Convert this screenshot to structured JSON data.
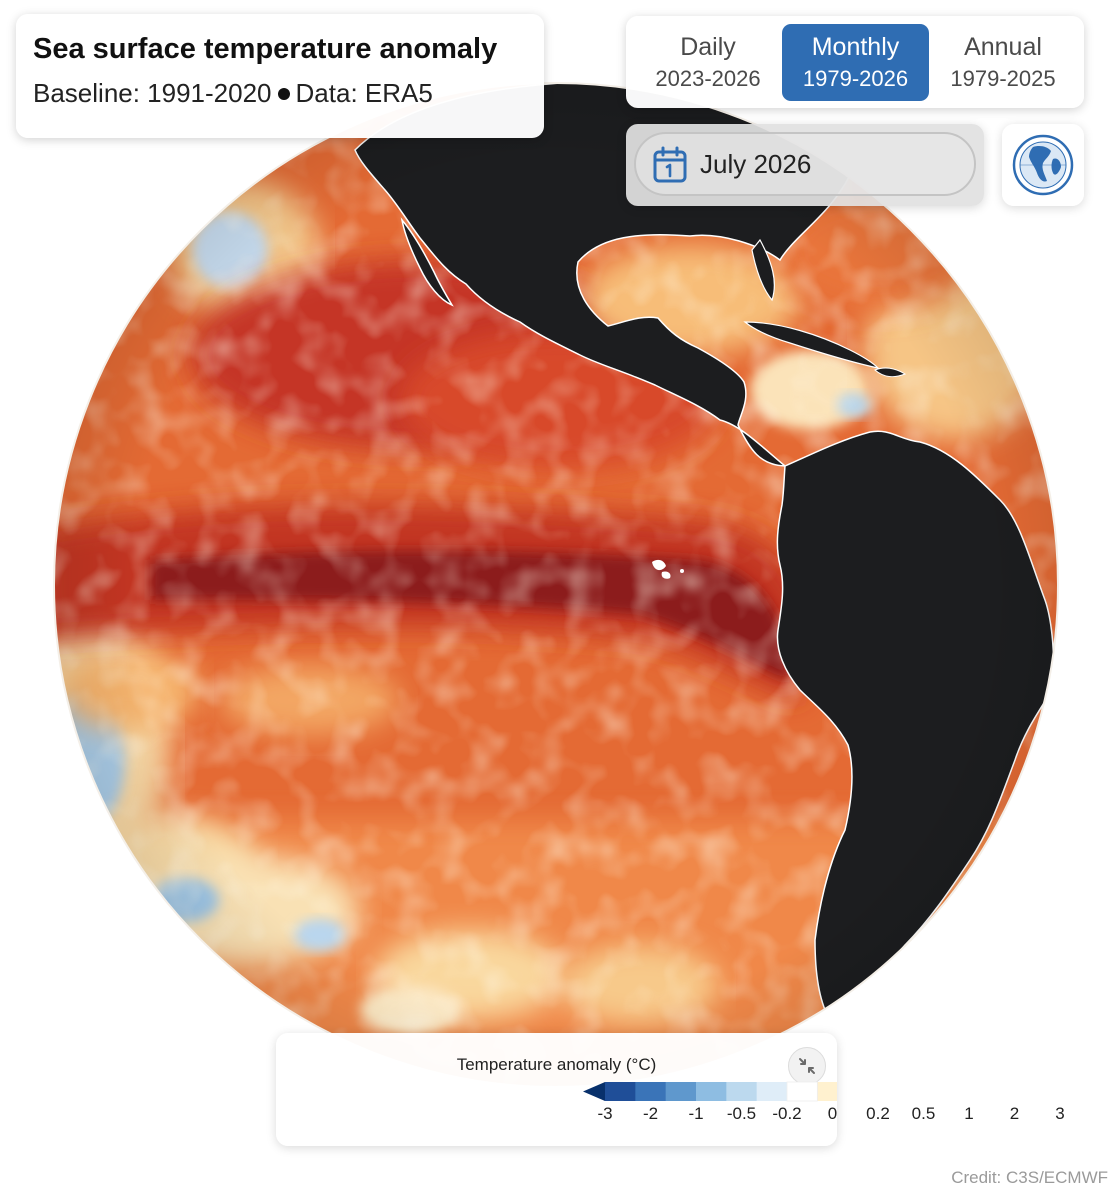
{
  "title": "Sea surface temperature anomaly",
  "subtitle": {
    "baseline": "Baseline: 1991-2020",
    "data_source": "Data: ERA5"
  },
  "period_tabs": [
    {
      "label": "Daily",
      "range": "2023-2026",
      "active": false
    },
    {
      "label": "Monthly",
      "range": "1979-2026",
      "active": true
    },
    {
      "label": "Annual",
      "range": "1979-2025",
      "active": false
    }
  ],
  "date_selector": {
    "value": "July 2026",
    "icon": "calendar-icon"
  },
  "globe_button": {
    "icon": "globe-icon"
  },
  "map": {
    "projection": "orthographic globe",
    "region": "Eastern Pacific and the Americas",
    "land_color": "#1c1d1f",
    "coastline_color": "#ffffff"
  },
  "legend": {
    "title": "Temperature anomaly (°C)",
    "ticks": [
      "-3",
      "-2",
      "-1",
      "-0.5",
      "-0.2",
      "0",
      "0.2",
      "0.5",
      "1",
      "2",
      "3"
    ],
    "colors": [
      "#08306b",
      "#1f4e98",
      "#3a74b8",
      "#5f98cd",
      "#8ebde2",
      "#bcd9ee",
      "#dfedf8",
      "#ffffff",
      "#fff1cf",
      "#fedb9b",
      "#fdc06a",
      "#f9a34b",
      "#ef7d3b",
      "#e0582d",
      "#c53625",
      "#a31d1f",
      "#7f1517"
    ],
    "collapse_icon": "collapse-arrows-icon"
  },
  "credit": "Credit: C3S/ECMWF"
}
